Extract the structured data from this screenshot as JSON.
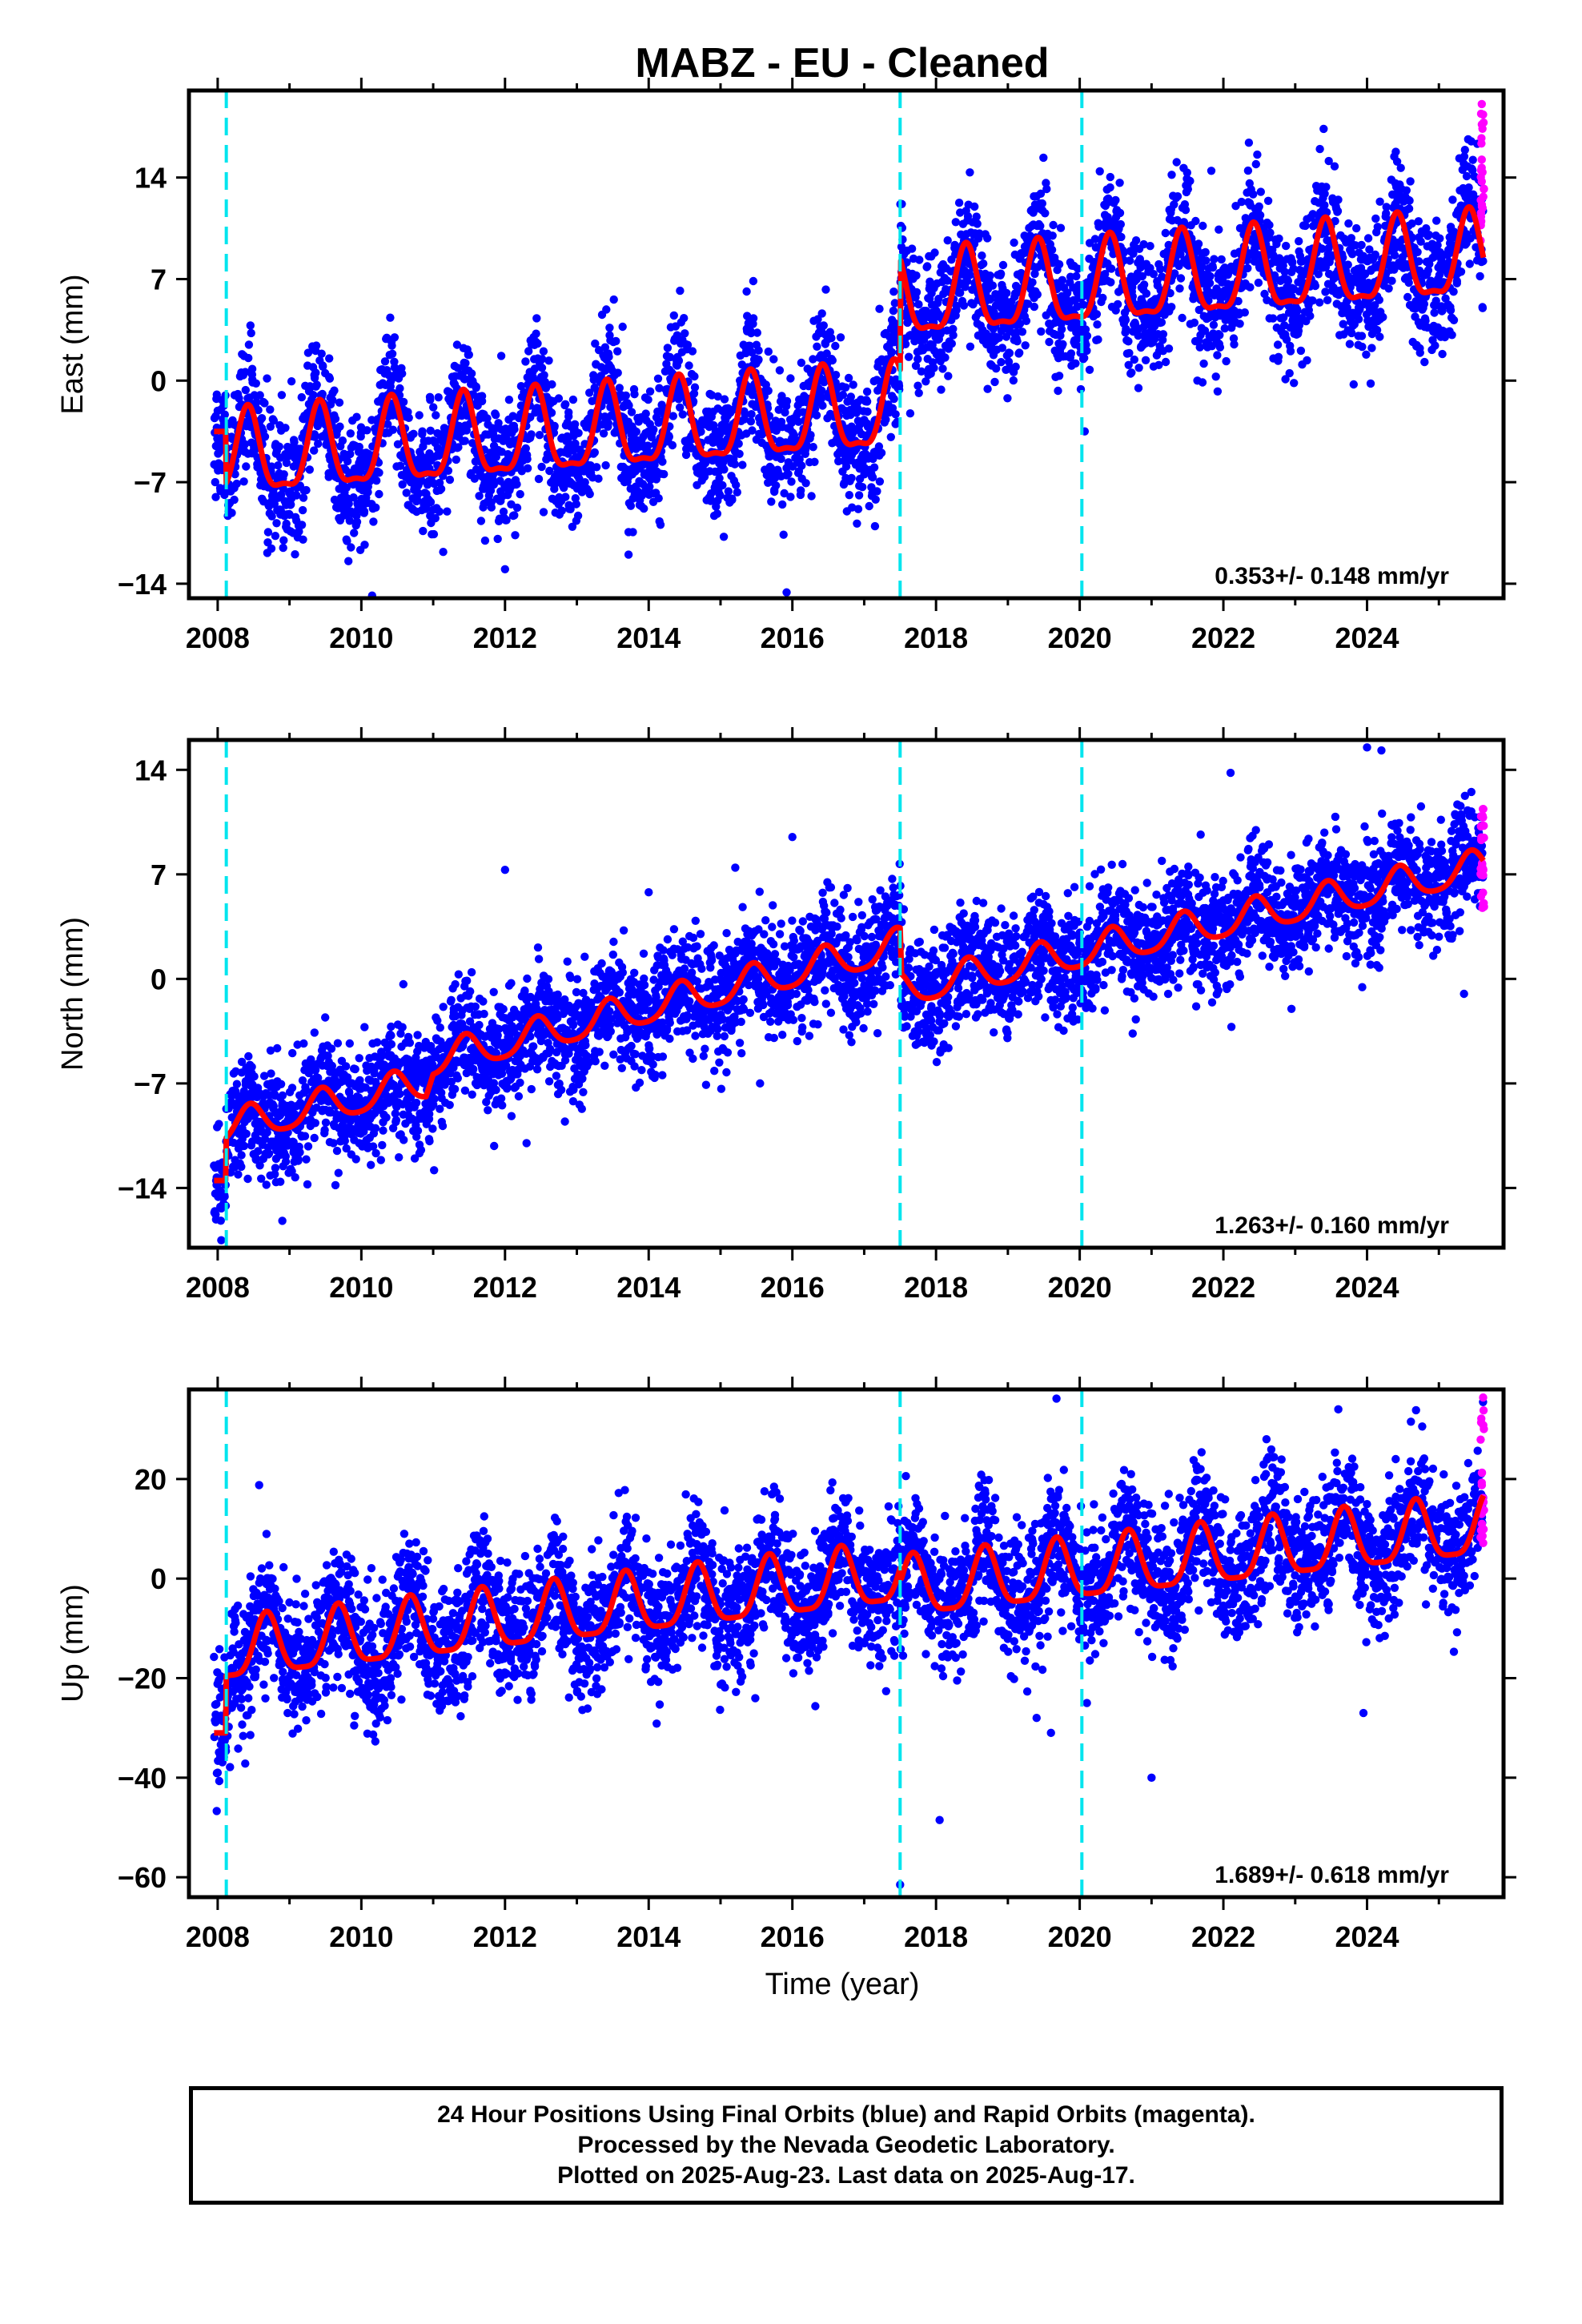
{
  "title": "MABZ  - EU - Cleaned",
  "x_label": "Time (year)",
  "x_ticks": [
    "2008",
    "2010",
    "2012",
    "2014",
    "2016",
    "2018",
    "2020",
    "2022",
    "2024"
  ],
  "x_tick_values": [
    2008,
    2010,
    2012,
    2014,
    2016,
    2018,
    2020,
    2022,
    2024
  ],
  "footer": {
    "line1": "24 Hour Positions Using Final Orbits (blue) and Rapid Orbits (magenta).",
    "line2": "Processed by the Nevada Geodetic Laboratory.",
    "line3": "Plotted on 2025-Aug-23. Last data on 2025-Aug-17."
  },
  "colors": {
    "final_orbits": "#0000ff",
    "rapid_orbits": "#ff00ff",
    "model": "#ff0000",
    "steps": "#00e5ee"
  },
  "chart_data": [
    {
      "type": "scatter",
      "panel": "east",
      "ylabel": "East (mm)",
      "xlim": [
        2007.6,
        2025.9
      ],
      "ylim": [
        -15,
        20
      ],
      "y_ticks": [
        -14,
        -7,
        0,
        7,
        14
      ],
      "y_tick_labels": [
        "−14",
        "−7",
        "0",
        "7",
        "14"
      ],
      "rate": "0.353+/- 0.148 mm/yr",
      "step_lines": [
        2008.12,
        2017.5,
        2020.03
      ],
      "model": {
        "segments": [
          {
            "start": 2007.95,
            "end": 2008.12,
            "base": -3.5,
            "slope": 0
          },
          {
            "start": 2008.12,
            "end": 2017.5,
            "base_at_2008": -5.5,
            "slope": 0.35
          },
          {
            "start": 2017.5,
            "end": 2025.62,
            "base_at_2017_5": 5.5,
            "slope": 0.35
          }
        ],
        "annual_amplitude": 2.8,
        "annual_peak_phase": 0.42,
        "semiannual_amplitude": 0.9
      },
      "scatter_scale": 2.2,
      "outliers": [
        [
          2015.92,
          -14.6
        ],
        [
          2012.0,
          -13.0
        ],
        [
          2020.07,
          -3.5
        ],
        [
          2009.05,
          -10.5
        ],
        [
          2024.05,
          -0.2
        ]
      ],
      "rapid_range": [
        9.5,
        19.5
      ]
    },
    {
      "type": "scatter",
      "panel": "north",
      "ylabel": "North (mm)",
      "xlim": [
        2007.6,
        2025.9
      ],
      "ylim": [
        -18,
        16
      ],
      "y_ticks": [
        -14,
        -7,
        0,
        7,
        14
      ],
      "y_tick_labels": [
        "−14",
        "−7",
        "0",
        "7",
        "14"
      ],
      "rate": "1.263+/- 0.160 mm/yr",
      "step_lines": [
        2008.12,
        2017.5,
        2020.03
      ],
      "model": {
        "knots": [
          [
            2008.12,
            -10.0
          ],
          [
            2010.9,
            -7.0
          ],
          [
            2011.0,
            -5.5
          ],
          [
            2017.5,
            2.2
          ],
          [
            2017.52,
            -0.8
          ],
          [
            2025.62,
            7.5
          ]
        ],
        "pre_start": [
          2007.95,
          -13.5
        ],
        "annual_amplitude": 1.1,
        "annual_peak_phase": 0.45,
        "semiannual_amplitude": 0.2
      },
      "scatter_scale": 1.9,
      "outliers": [
        [
          2008.05,
          -17.5
        ],
        [
          2008.9,
          -16.2
        ],
        [
          2012.0,
          7.3
        ],
        [
          2014.0,
          5.8
        ],
        [
          2015.55,
          -7.0
        ],
        [
          2016.0,
          9.5
        ],
        [
          2022.1,
          13.8
        ],
        [
          2024.0,
          15.5
        ],
        [
          2024.2,
          15.3
        ],
        [
          2025.35,
          -1.0
        ],
        [
          2012.3,
          -11.0
        ]
      ],
      "rapid_range": [
        4.0,
        11.5
      ]
    },
    {
      "type": "scatter",
      "panel": "up",
      "ylabel": "Up (mm)",
      "xlim": [
        2007.6,
        2025.9
      ],
      "ylim": [
        -64,
        38
      ],
      "y_ticks": [
        -60,
        -40,
        -20,
        0,
        20
      ],
      "y_tick_labels": [
        "−60",
        "−40",
        "−20",
        "0",
        "20"
      ],
      "rate": "1.689+/- 0.618 mm/yr",
      "step_lines": [
        2008.12,
        2017.5,
        2020.03
      ],
      "model": {
        "knots": [
          [
            2008.12,
            -15.0
          ],
          [
            2017.5,
            0.5
          ],
          [
            2017.52,
            -2.5
          ],
          [
            2025.62,
            10.0
          ]
        ],
        "pre_start": [
          2007.95,
          -31.0
        ],
        "annual_amplitude": 6.0,
        "annual_peak_phase": 0.68,
        "semiannual_amplitude": 1.5
      },
      "scatter_scale": 6.5,
      "outliers": [
        [
          2017.5,
          -61.5
        ],
        [
          2018.05,
          -48.5
        ],
        [
          2021.0,
          -40.0
        ],
        [
          2023.95,
          -27.0
        ],
        [
          2019.4,
          -28.0
        ],
        [
          2019.6,
          -31.0
        ],
        [
          2022.6,
          28.0
        ],
        [
          2023.6,
          34.0
        ],
        [
          2008.0,
          -39.0
        ],
        [
          2009.9,
          -29.5
        ],
        [
          2020.1,
          -25.0
        ]
      ],
      "rapid_range": [
        6.0,
        37.0
      ]
    }
  ]
}
